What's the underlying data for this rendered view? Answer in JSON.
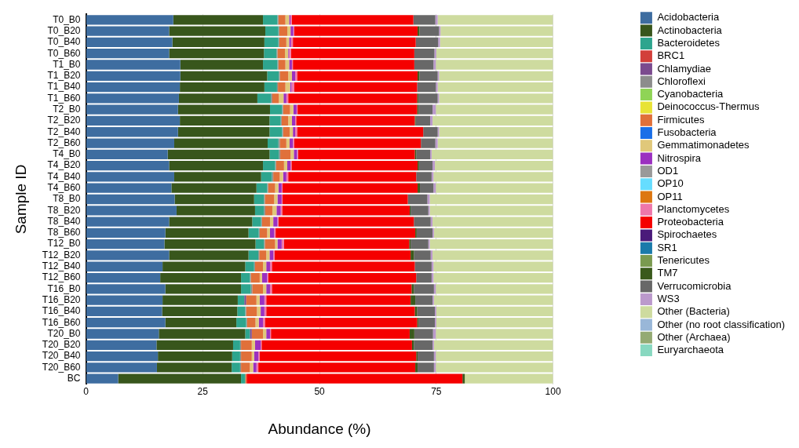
{
  "chart_data": {
    "type": "bar",
    "orientation": "horizontal",
    "stacked": true,
    "xlabel": "Abundance (%)",
    "ylabel": "Sample ID",
    "categories": [
      "T0_B0",
      "T0_B20",
      "T0_B40",
      "T0_B60",
      "T1_B0",
      "T1_B20",
      "T1_B40",
      "T1_B60",
      "T2_B0",
      "T2_B20",
      "T2_B40",
      "T2_B60",
      "T4_B0",
      "T4_B20",
      "T4_B40",
      "T4_B60",
      "T8_B0",
      "T8_B20",
      "T8_B40",
      "T8_B60",
      "T12_B0",
      "T12_B20",
      "T12_B40",
      "T12_B60",
      "T16_B0",
      "T16_B20",
      "T16_B40",
      "T16_B60",
      "T20_B0",
      "T20_B20",
      "T20_B40",
      "T20_B60",
      "BC"
    ],
    "xlim": [
      0,
      100
    ],
    "xticks": [
      0,
      25,
      50,
      75,
      100
    ],
    "grid": "x",
    "legend": "right",
    "series": [
      {
        "name": "Acidobacteria",
        "color": "#3e6da0",
        "values": [
          18.7,
          17.8,
          18.5,
          17.8,
          20.2,
          20.2,
          20.1,
          19.9,
          19.7,
          20.1,
          19.7,
          18.9,
          17.5,
          17.8,
          18.9,
          18.3,
          19.0,
          19.4,
          17.8,
          17.0,
          16.8,
          17.8,
          16.4,
          15.9,
          17.0,
          16.4,
          16.3,
          17.0,
          15.6,
          15.1,
          15.4,
          15.2,
          6.9
        ]
      },
      {
        "name": "Actinobacteria",
        "color": "#38561c",
        "values": [
          19.2,
          20.6,
          19.7,
          20.3,
          17.7,
          18.6,
          18.1,
          16.8,
          19.7,
          19.2,
          19.6,
          20.0,
          21.8,
          20.1,
          18.6,
          18.2,
          17.0,
          16.8,
          17.8,
          17.8,
          19.5,
          17.0,
          17.7,
          17.3,
          16.2,
          16.1,
          16.1,
          15.2,
          18.5,
          16.4,
          15.9,
          16.0,
          26.3
        ]
      },
      {
        "name": "Bacteroidetes",
        "color": "#2ea58e",
        "values": [
          3.1,
          2.8,
          3.0,
          2.7,
          3.1,
          2.5,
          2.7,
          2.9,
          2.6,
          2.4,
          2.7,
          2.3,
          2.0,
          2.6,
          2.3,
          2.3,
          2.1,
          1.9,
          1.9,
          2.2,
          1.8,
          2.1,
          1.9,
          1.9,
          2.1,
          1.4,
          1.7,
          2.1,
          1.0,
          1.5,
          1.7,
          1.8,
          0.9
        ]
      },
      {
        "name": "BRC1",
        "color": "#d23f3a",
        "values": [
          0,
          0,
          0,
          0,
          0,
          0,
          0,
          0,
          0,
          0,
          0,
          0,
          0,
          0,
          0,
          0,
          0,
          0,
          0,
          0,
          0,
          0,
          0,
          0,
          0,
          0,
          0,
          0,
          0,
          0,
          0,
          0,
          0
        ]
      },
      {
        "name": "Chlamydiae",
        "color": "#7b4a8e",
        "values": [
          0,
          0,
          0,
          0,
          0,
          0,
          0,
          0,
          0,
          0,
          0,
          0,
          0,
          0,
          0,
          0,
          0,
          0,
          0,
          0,
          0,
          0,
          0,
          0,
          0,
          0.4,
          0,
          0,
          0.4,
          0,
          0,
          0,
          0
        ]
      },
      {
        "name": "Chloroflexi",
        "color": "#8c8c8c",
        "values": [
          0.2,
          0.2,
          0.2,
          0.2,
          0.2,
          0.2,
          0.2,
          0.3,
          0.2,
          0.2,
          0.2,
          0.3,
          0.3,
          0.2,
          0.3,
          0.2,
          0.2,
          0.3,
          0.2,
          0.2,
          0.2,
          0.2,
          0.2,
          0.2,
          0.3,
          0,
          0.2,
          0.2,
          0,
          0.2,
          0.2,
          0.2,
          0
        ]
      },
      {
        "name": "Cyanobacteria",
        "color": "#8fd456",
        "values": [
          0,
          0,
          0,
          0,
          0,
          0,
          0,
          0,
          0,
          0,
          0,
          0,
          0,
          0,
          0,
          0,
          0,
          0,
          0,
          0,
          0,
          0,
          0,
          0,
          0,
          0,
          0,
          0,
          0,
          0,
          0,
          0,
          0
        ]
      },
      {
        "name": "Deinococcus-Thermus",
        "color": "#e8e336",
        "values": [
          0,
          0,
          0,
          0,
          0,
          0,
          0,
          0,
          0,
          0,
          0,
          0,
          0,
          0,
          0,
          0,
          0,
          0,
          0,
          0,
          0,
          0,
          0,
          0,
          0,
          0,
          0,
          0,
          0,
          0,
          0,
          0,
          0
        ]
      },
      {
        "name": "Firmicutes",
        "color": "#e0703a",
        "values": [
          1.5,
          1.7,
          1.5,
          1.6,
          1.5,
          1.8,
          1.6,
          1.4,
          1.5,
          1.4,
          1.4,
          1.4,
          2.2,
          1.7,
          1.4,
          1.5,
          2.0,
          1.5,
          1.7,
          1.6,
          2.2,
          1.5,
          1.7,
          1.9,
          2.3,
          2.2,
          2.3,
          1.8,
          2.4,
          2.3,
          2.3,
          1.9,
          0.3
        ]
      },
      {
        "name": "Fusobacteria",
        "color": "#1a6fe8",
        "values": [
          0,
          0,
          0,
          0,
          0,
          0,
          0,
          0,
          0,
          0,
          0,
          0,
          0,
          0,
          0,
          0,
          0,
          0,
          0,
          0,
          0,
          0,
          0,
          0,
          0,
          0,
          0,
          0,
          0,
          0,
          0,
          0,
          0
        ]
      },
      {
        "name": "Gemmatimonadetes",
        "color": "#e0c87a",
        "values": [
          0.8,
          0.7,
          0.6,
          0.7,
          0.8,
          0.8,
          1.0,
          1.0,
          0.7,
          0.8,
          0.7,
          0.7,
          0.7,
          0.7,
          0.7,
          0.7,
          0.7,
          0.9,
          0.7,
          0.6,
          0.5,
          0.7,
          0.7,
          0.5,
          0.7,
          0.7,
          0.8,
          0.7,
          0.7,
          0.7,
          0.5,
          0.7,
          0
        ]
      },
      {
        "name": "Nitrospira",
        "color": "#9b30c0",
        "values": [
          0.3,
          0.6,
          0.4,
          0.2,
          0.6,
          0.7,
          0.3,
          0.6,
          0.7,
          0.7,
          0.5,
          0.7,
          0.7,
          0.7,
          0.7,
          0.7,
          0.9,
          0.9,
          0.9,
          0.9,
          0.9,
          0.8,
          0.8,
          1.1,
          0.8,
          1.0,
          0.8,
          0.9,
          0.8,
          1.2,
          0.9,
          0.7,
          0
        ]
      },
      {
        "name": "OD1",
        "color": "#999999",
        "values": [
          0,
          0,
          0,
          0,
          0,
          0,
          0,
          0,
          0,
          0,
          0,
          0,
          0,
          0,
          0,
          0,
          0,
          0,
          0,
          0,
          0,
          0,
          0,
          0,
          0,
          0,
          0,
          0,
          0,
          0,
          0,
          0,
          0
        ]
      },
      {
        "name": "OP10",
        "color": "#66ddff",
        "values": [
          0,
          0,
          0,
          0,
          0,
          0,
          0,
          0,
          0,
          0,
          0,
          0,
          0,
          0,
          0,
          0,
          0,
          0,
          0,
          0,
          0,
          0,
          0,
          0,
          0,
          0,
          0,
          0,
          0,
          0,
          0,
          0,
          0
        ]
      },
      {
        "name": "OP11",
        "color": "#dd7711",
        "values": [
          0,
          0,
          0,
          0,
          0,
          0,
          0,
          0,
          0,
          0,
          0,
          0,
          0,
          0,
          0,
          0,
          0,
          0,
          0,
          0,
          0,
          0,
          0,
          0,
          0,
          0,
          0,
          0,
          0,
          0,
          0,
          0,
          0
        ]
      },
      {
        "name": "Planctomycetes",
        "color": "#ee77aa",
        "values": [
          0.3,
          0.2,
          0.4,
          0.4,
          0.2,
          0.4,
          0.6,
          0.4,
          0.2,
          0.2,
          0.4,
          0.3,
          0.2,
          0.2,
          0.4,
          0.2,
          0.2,
          0.3,
          0.2,
          0.3,
          0.5,
          0.3,
          0.4,
          0.2,
          0.4,
          0.4,
          0.4,
          0.4,
          0.2,
          0.2,
          0.3,
          0.4,
          0
        ]
      },
      {
        "name": "Proteobacteria",
        "color": "#f50000",
        "values": [
          26.0,
          26.4,
          26.3,
          26.4,
          26.0,
          25.8,
          26.3,
          27.6,
          25.6,
          25.4,
          27.0,
          27.1,
          25.0,
          27.0,
          27.4,
          28.9,
          26.8,
          27.3,
          29.0,
          29.9,
          26.8,
          29.1,
          30.6,
          31.7,
          29.9,
          30.9,
          31.8,
          32.6,
          29.7,
          32.2,
          33.5,
          33.6,
          46.2
        ]
      },
      {
        "name": "Spirochaetes",
        "color": "#4a1a7a",
        "values": [
          0,
          0,
          0,
          0,
          0,
          0,
          0,
          0,
          0,
          0,
          0,
          0,
          0,
          0,
          0,
          0,
          0,
          0,
          0,
          0,
          0,
          0,
          0,
          0,
          0,
          0,
          0,
          0,
          0,
          0,
          0,
          0,
          0
        ]
      },
      {
        "name": "SR1",
        "color": "#1a7aaa",
        "values": [
          0,
          0,
          0,
          0,
          0,
          0,
          0,
          0,
          0,
          0,
          0,
          0,
          0,
          0,
          0,
          0,
          0,
          0,
          0,
          0,
          0,
          0,
          0,
          0,
          0,
          0,
          0,
          0,
          0,
          0,
          0,
          0,
          0
        ]
      },
      {
        "name": "Tenericutes",
        "color": "#7a9a50",
        "values": [
          0,
          0,
          0,
          0,
          0,
          0,
          0,
          0,
          0,
          0,
          0,
          0,
          0,
          0,
          0,
          0,
          0,
          0,
          0,
          0,
          0,
          0,
          0,
          0,
          0,
          0,
          0,
          0,
          0,
          0,
          0,
          0,
          0
        ]
      },
      {
        "name": "TM7",
        "color": "#3a5a1c",
        "values": [
          0,
          0.4,
          0,
          0,
          0,
          0.4,
          0,
          0.3,
          0.3,
          0.2,
          0,
          0,
          0.3,
          0.3,
          0,
          0.5,
          0,
          0.2,
          0,
          0.3,
          0.3,
          0.7,
          0,
          0,
          0.5,
          1.0,
          0.5,
          0.3,
          1.0,
          0.4,
          0.3,
          0.5,
          0.5
        ]
      },
      {
        "name": "Verrucomicrobia",
        "color": "#686868",
        "values": [
          4.7,
          4.2,
          4.8,
          4.3,
          4.1,
          3.9,
          4.0,
          4.1,
          3.0,
          3.1,
          3.1,
          3.1,
          3.0,
          2.9,
          3.3,
          2.9,
          4.2,
          3.8,
          3.6,
          3.4,
          3.8,
          3.6,
          3.6,
          3.3,
          4.3,
          3.7,
          3.8,
          3.5,
          4.0,
          4.0,
          3.5,
          3.5,
          0
        ]
      },
      {
        "name": "WS3",
        "color": "#bb99cc",
        "values": [
          0.5,
          0.3,
          0.4,
          0.4,
          0.5,
          0.3,
          0.4,
          0.3,
          0.7,
          0.5,
          0.3,
          0.5,
          0.3,
          0.5,
          0.4,
          0.5,
          0.5,
          0.3,
          0.4,
          0.3,
          0.3,
          0.4,
          0.4,
          0.4,
          0.4,
          0.3,
          0.3,
          0.3,
          0.6,
          0.3,
          0.4,
          0.4,
          0
        ]
      },
      {
        "name": "Other (Bacteria)",
        "color": "#cedb9f",
        "values": [
          24.7,
          24.1,
          24.2,
          25.0,
          25.1,
          24.4,
          24.7,
          24.4,
          25.1,
          25.8,
          24.4,
          24.7,
          26.0,
          25.3,
          25.6,
          25.1,
          26.4,
          26.4,
          25.8,
          25.5,
          26.4,
          25.8,
          25.6,
          25.6,
          25.1,
          25.5,
          25.0,
          25.0,
          25.1,
          25.5,
          25.1,
          25.1,
          18.9
        ]
      },
      {
        "name": "Other (no root classification)",
        "color": "#99b7d8",
        "values": [
          0,
          0,
          0,
          0,
          0,
          0,
          0,
          0,
          0,
          0,
          0,
          0,
          0,
          0,
          0,
          0,
          0,
          0,
          0,
          0,
          0,
          0,
          0,
          0,
          0,
          0,
          0,
          0,
          0,
          0,
          0,
          0,
          0
        ]
      },
      {
        "name": "Other (Archaea)",
        "color": "#94aa73",
        "values": [
          0,
          0,
          0,
          0,
          0,
          0,
          0,
          0,
          0,
          0,
          0,
          0,
          0,
          0,
          0,
          0,
          0,
          0,
          0,
          0,
          0,
          0,
          0,
          0,
          0,
          0,
          0,
          0,
          0,
          0,
          0,
          0,
          0
        ]
      },
      {
        "name": "Euryarchaeota",
        "color": "#88d8c0",
        "values": [
          0,
          0,
          0,
          0,
          0,
          0,
          0,
          0,
          0,
          0,
          0,
          0,
          0,
          0,
          0,
          0,
          0,
          0,
          0,
          0,
          0,
          0,
          0,
          0,
          0,
          0,
          0,
          0,
          0,
          0,
          0,
          0,
          0
        ]
      }
    ]
  }
}
